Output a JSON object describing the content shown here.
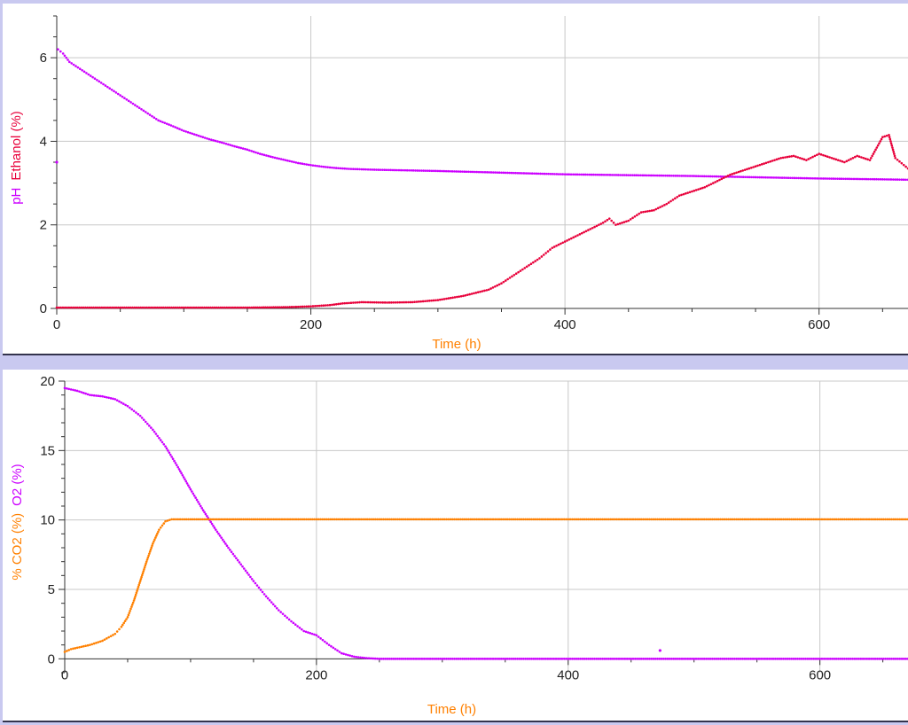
{
  "colors": {
    "background": "#c9c9f0",
    "magenta": "#cc00ff",
    "red": "#e8003a",
    "orange": "#ff8000",
    "grid": "#c8c8c8"
  },
  "chart_data": [
    {
      "type": "scatter",
      "xlabel": "Time (h)",
      "xlabel_color": "#ff8000",
      "ylabels": [
        {
          "text": "pH",
          "color": "#cc00ff"
        },
        {
          "text": "Ethanol (%)",
          "color": "#e8003a"
        }
      ],
      "xlim": [
        0,
        670
      ],
      "ylim": [
        0,
        7
      ],
      "xticks": [
        0,
        200,
        400,
        600
      ],
      "yticks": [
        0,
        2,
        4,
        6
      ],
      "grid": true,
      "series": [
        {
          "key": "ph",
          "color": "#cc00ff",
          "outliers": [
            [
              0,
              3.5
            ]
          ],
          "points": [
            [
              1,
              6.2
            ],
            [
              5,
              6.1
            ],
            [
              10,
              5.9
            ],
            [
              20,
              5.7
            ],
            [
              30,
              5.5
            ],
            [
              40,
              5.3
            ],
            [
              50,
              5.1
            ],
            [
              60,
              4.9
            ],
            [
              70,
              4.7
            ],
            [
              80,
              4.5
            ],
            [
              90,
              4.38
            ],
            [
              100,
              4.25
            ],
            [
              110,
              4.15
            ],
            [
              120,
              4.05
            ],
            [
              130,
              3.97
            ],
            [
              140,
              3.88
            ],
            [
              150,
              3.8
            ],
            [
              160,
              3.7
            ],
            [
              170,
              3.62
            ],
            [
              180,
              3.55
            ],
            [
              190,
              3.48
            ],
            [
              200,
              3.43
            ],
            [
              210,
              3.39
            ],
            [
              220,
              3.36
            ],
            [
              230,
              3.34
            ],
            [
              250,
              3.32
            ],
            [
              300,
              3.29
            ],
            [
              350,
              3.25
            ],
            [
              400,
              3.21
            ],
            [
              450,
              3.19
            ],
            [
              500,
              3.17
            ],
            [
              550,
              3.14
            ],
            [
              600,
              3.11
            ],
            [
              650,
              3.09
            ],
            [
              670,
              3.08
            ]
          ]
        },
        {
          "key": "ethanol",
          "color": "#e8003a",
          "points": [
            [
              0,
              0.02
            ],
            [
              100,
              0.02
            ],
            [
              150,
              0.02
            ],
            [
              180,
              0.03
            ],
            [
              200,
              0.05
            ],
            [
              215,
              0.08
            ],
            [
              225,
              0.12
            ],
            [
              240,
              0.15
            ],
            [
              260,
              0.14
            ],
            [
              280,
              0.15
            ],
            [
              300,
              0.2
            ],
            [
              320,
              0.3
            ],
            [
              340,
              0.45
            ],
            [
              350,
              0.6
            ],
            [
              360,
              0.8
            ],
            [
              370,
              1.0
            ],
            [
              380,
              1.2
            ],
            [
              390,
              1.45
            ],
            [
              400,
              1.6
            ],
            [
              410,
              1.75
            ],
            [
              420,
              1.9
            ],
            [
              430,
              2.05
            ],
            [
              435,
              2.15
            ],
            [
              440,
              2.0
            ],
            [
              450,
              2.1
            ],
            [
              460,
              2.3
            ],
            [
              470,
              2.35
            ],
            [
              480,
              2.5
            ],
            [
              490,
              2.7
            ],
            [
              500,
              2.8
            ],
            [
              510,
              2.9
            ],
            [
              520,
              3.05
            ],
            [
              530,
              3.2
            ],
            [
              540,
              3.3
            ],
            [
              550,
              3.4
            ],
            [
              560,
              3.5
            ],
            [
              570,
              3.6
            ],
            [
              580,
              3.65
            ],
            [
              590,
              3.55
            ],
            [
              600,
              3.7
            ],
            [
              610,
              3.6
            ],
            [
              620,
              3.5
            ],
            [
              630,
              3.65
            ],
            [
              640,
              3.55
            ],
            [
              650,
              4.1
            ],
            [
              655,
              4.15
            ],
            [
              660,
              3.6
            ],
            [
              670,
              3.35
            ]
          ]
        }
      ]
    },
    {
      "type": "scatter",
      "xlabel": "Time (h)",
      "xlabel_color": "#ff8000",
      "ylabels": [
        {
          "text": "% CO2 (%)",
          "color": "#ff8000"
        },
        {
          "text": "O2 (%)",
          "color": "#cc00ff"
        }
      ],
      "xlim": [
        0,
        670
      ],
      "ylim": [
        -1,
        20
      ],
      "xticks": [
        0,
        200,
        400,
        600
      ],
      "yticks": [
        0,
        5,
        10,
        15,
        20
      ],
      "grid": true,
      "series": [
        {
          "key": "o2",
          "color": "#cc00ff",
          "outliers": [
            [
              473,
              0.6
            ]
          ],
          "points": [
            [
              0,
              19.5
            ],
            [
              10,
              19.3
            ],
            [
              20,
              19.0
            ],
            [
              30,
              18.9
            ],
            [
              40,
              18.7
            ],
            [
              50,
              18.2
            ],
            [
              60,
              17.5
            ],
            [
              70,
              16.5
            ],
            [
              80,
              15.3
            ],
            [
              90,
              13.8
            ],
            [
              100,
              12.2
            ],
            [
              110,
              10.7
            ],
            [
              120,
              9.3
            ],
            [
              130,
              8.0
            ],
            [
              140,
              6.8
            ],
            [
              150,
              5.6
            ],
            [
              160,
              4.5
            ],
            [
              170,
              3.5
            ],
            [
              180,
              2.7
            ],
            [
              190,
              2.0
            ],
            [
              200,
              1.7
            ],
            [
              210,
              1.0
            ],
            [
              220,
              0.4
            ],
            [
              230,
              0.15
            ],
            [
              240,
              0.05
            ],
            [
              250,
              0.0
            ],
            [
              300,
              0.0
            ],
            [
              400,
              0.0
            ],
            [
              500,
              0.0
            ],
            [
              600,
              0.0
            ],
            [
              670,
              0.0
            ]
          ]
        },
        {
          "key": "co2",
          "color": "#ff8000",
          "points": [
            [
              0,
              0.5
            ],
            [
              5,
              0.7
            ],
            [
              10,
              0.8
            ],
            [
              20,
              1.0
            ],
            [
              30,
              1.3
            ],
            [
              40,
              1.8
            ],
            [
              45,
              2.3
            ],
            [
              50,
              3.0
            ],
            [
              55,
              4.2
            ],
            [
              60,
              5.6
            ],
            [
              65,
              7.0
            ],
            [
              70,
              8.3
            ],
            [
              75,
              9.3
            ],
            [
              80,
              9.9
            ],
            [
              85,
              10.05
            ],
            [
              100,
              10.05
            ],
            [
              200,
              10.05
            ],
            [
              300,
              10.05
            ],
            [
              400,
              10.05
            ],
            [
              500,
              10.05
            ],
            [
              600,
              10.05
            ],
            [
              670,
              10.05
            ]
          ]
        }
      ]
    }
  ]
}
